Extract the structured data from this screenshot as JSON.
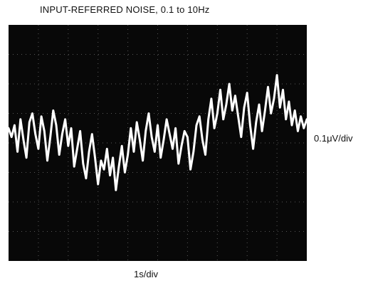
{
  "chart_data": {
    "type": "line",
    "title": "INPUT-REFERRED NOISE, 0.1 to 10Hz",
    "xlabel": "1s/div",
    "ylabel": "0.1μV/div",
    "x_divisions": 10,
    "y_divisions": 8,
    "grid": true,
    "background": "#080808",
    "trace_color": "#ffffff",
    "grid_color": "#9a9a9a",
    "series": [
      {
        "x": [
          0,
          0.1,
          0.2,
          0.3,
          0.4,
          0.5,
          0.6,
          0.7,
          0.8,
          0.9,
          1.0,
          1.1,
          1.2,
          1.3,
          1.4,
          1.5,
          1.6,
          1.7,
          1.8,
          1.9,
          2.0,
          2.1,
          2.2,
          2.3,
          2.4,
          2.5,
          2.6,
          2.7,
          2.8,
          2.9,
          3.0,
          3.1,
          3.2,
          3.3,
          3.4,
          3.5,
          3.6,
          3.7,
          3.8,
          3.9,
          4.0,
          4.1,
          4.2,
          4.3,
          4.4,
          4.5,
          4.6,
          4.7,
          4.8,
          4.9,
          5.0,
          5.1,
          5.2,
          5.3,
          5.4,
          5.5,
          5.6,
          5.7,
          5.8,
          5.9,
          6.0,
          6.1,
          6.2,
          6.3,
          6.4,
          6.5,
          6.6,
          6.7,
          6.8,
          6.9,
          7.0,
          7.1,
          7.2,
          7.3,
          7.4,
          7.5,
          7.6,
          7.7,
          7.8,
          7.9,
          8.0,
          8.1,
          8.2,
          8.3,
          8.4,
          8.5,
          8.6,
          8.7,
          8.8,
          8.9,
          9.0,
          9.1,
          9.2,
          9.3,
          9.4,
          9.5,
          9.6,
          9.7,
          9.8,
          9.9,
          10.0
        ],
        "y": [
          0.05,
          0.02,
          0.06,
          -0.03,
          0.08,
          0.01,
          -0.05,
          0.07,
          0.1,
          0.03,
          -0.02,
          0.09,
          0.04,
          -0.06,
          0.02,
          0.11,
          0.06,
          -0.04,
          0.03,
          0.08,
          -0.01,
          0.05,
          -0.08,
          -0.02,
          0.04,
          -0.07,
          -0.12,
          -0.03,
          0.03,
          -0.05,
          -0.14,
          -0.06,
          -0.09,
          -0.02,
          -0.11,
          -0.05,
          -0.16,
          -0.08,
          -0.01,
          -0.1,
          -0.04,
          0.05,
          -0.03,
          0.07,
          0.01,
          -0.06,
          0.04,
          0.1,
          0.02,
          -0.03,
          0.06,
          -0.05,
          0.01,
          0.08,
          0.03,
          -0.02,
          0.05,
          -0.07,
          -0.01,
          0.04,
          0.02,
          -0.09,
          -0.03,
          0.06,
          0.09,
          0.01,
          -0.04,
          0.08,
          0.15,
          0.05,
          0.1,
          0.18,
          0.08,
          0.13,
          0.2,
          0.11,
          0.16,
          0.09,
          0.02,
          0.12,
          0.17,
          0.06,
          -0.02,
          0.07,
          0.13,
          0.04,
          0.11,
          0.19,
          0.1,
          0.15,
          0.23,
          0.12,
          0.18,
          0.08,
          0.14,
          0.06,
          0.11,
          0.04,
          0.09,
          0.05,
          0.08
        ]
      }
    ]
  }
}
